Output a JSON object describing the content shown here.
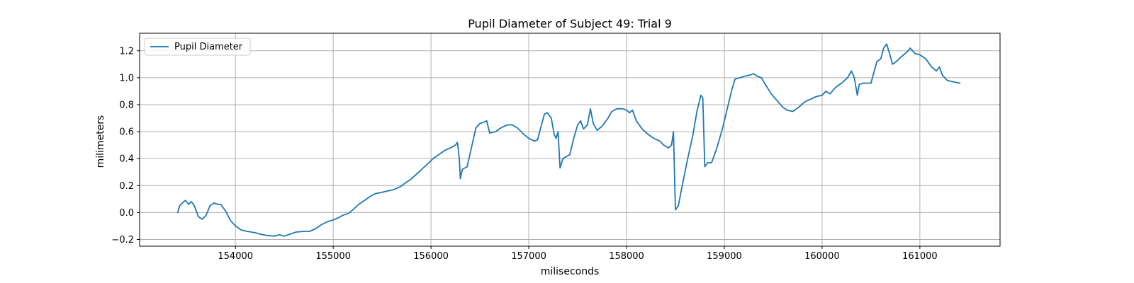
{
  "chart_data": {
    "type": "line",
    "title": "Pupil Diameter of Subject 49: Trial 9",
    "xlabel": "miliseconds",
    "ylabel": "milimeters",
    "xlim": [
      153020,
      161820
    ],
    "ylim": [
      -0.25,
      1.33
    ],
    "xticks": [
      154000,
      155000,
      156000,
      157000,
      158000,
      159000,
      160000,
      161000
    ],
    "yticks": [
      -0.2,
      0.0,
      0.2,
      0.4,
      0.6,
      0.8,
      1.0,
      1.2
    ],
    "xtick_labels": [
      "154000",
      "155000",
      "156000",
      "157000",
      "158000",
      "159000",
      "160000",
      "161000"
    ],
    "ytick_labels": [
      "−0.2",
      "0.0",
      "0.2",
      "0.4",
      "0.6",
      "0.8",
      "1.0",
      "1.2"
    ],
    "grid": true,
    "legend_position": "top-left",
    "series": [
      {
        "name": "Pupil Diameter",
        "color": "#1f77b4",
        "points": [
          [
            153410,
            0.0
          ],
          [
            153430,
            0.05
          ],
          [
            153470,
            0.08
          ],
          [
            153490,
            0.09
          ],
          [
            153520,
            0.06
          ],
          [
            153550,
            0.08
          ],
          [
            153580,
            0.05
          ],
          [
            153620,
            -0.03
          ],
          [
            153660,
            -0.05
          ],
          [
            153700,
            -0.02
          ],
          [
            153740,
            0.05
          ],
          [
            153780,
            0.07
          ],
          [
            153820,
            0.06
          ],
          [
            153850,
            0.06
          ],
          [
            153900,
            0.01
          ],
          [
            153950,
            -0.06
          ],
          [
            154000,
            -0.1
          ],
          [
            154060,
            -0.13
          ],
          [
            154120,
            -0.14
          ],
          [
            154200,
            -0.15
          ],
          [
            154250,
            -0.16
          ],
          [
            154320,
            -0.17
          ],
          [
            154400,
            -0.175
          ],
          [
            154450,
            -0.165
          ],
          [
            154500,
            -0.175
          ],
          [
            154560,
            -0.16
          ],
          [
            154620,
            -0.145
          ],
          [
            154700,
            -0.14
          ],
          [
            154760,
            -0.14
          ],
          [
            154820,
            -0.12
          ],
          [
            154880,
            -0.09
          ],
          [
            154950,
            -0.065
          ],
          [
            155000,
            -0.055
          ],
          [
            155050,
            -0.04
          ],
          [
            155100,
            -0.02
          ],
          [
            155160,
            -0.005
          ],
          [
            155200,
            0.02
          ],
          [
            155260,
            0.06
          ],
          [
            155320,
            0.09
          ],
          [
            155380,
            0.12
          ],
          [
            155430,
            0.14
          ],
          [
            155500,
            0.15
          ],
          [
            155560,
            0.16
          ],
          [
            155620,
            0.17
          ],
          [
            155680,
            0.19
          ],
          [
            155740,
            0.22
          ],
          [
            155800,
            0.25
          ],
          [
            155860,
            0.29
          ],
          [
            155920,
            0.33
          ],
          [
            155980,
            0.37
          ],
          [
            156020,
            0.4
          ],
          [
            156080,
            0.43
          ],
          [
            156140,
            0.46
          ],
          [
            156200,
            0.48
          ],
          [
            156250,
            0.5
          ],
          [
            156270,
            0.52
          ],
          [
            156290,
            0.4
          ],
          [
            156300,
            0.25
          ],
          [
            156320,
            0.32
          ],
          [
            156370,
            0.34
          ],
          [
            156420,
            0.5
          ],
          [
            156460,
            0.63
          ],
          [
            156500,
            0.66
          ],
          [
            156540,
            0.67
          ],
          [
            156570,
            0.68
          ],
          [
            156600,
            0.59
          ],
          [
            156660,
            0.6
          ],
          [
            156720,
            0.63
          ],
          [
            156780,
            0.65
          ],
          [
            156830,
            0.65
          ],
          [
            156880,
            0.63
          ],
          [
            156950,
            0.58
          ],
          [
            157000,
            0.55
          ],
          [
            157060,
            0.53
          ],
          [
            157090,
            0.54
          ],
          [
            157130,
            0.65
          ],
          [
            157160,
            0.73
          ],
          [
            157190,
            0.74
          ],
          [
            157230,
            0.7
          ],
          [
            157260,
            0.58
          ],
          [
            157280,
            0.55
          ],
          [
            157300,
            0.6
          ],
          [
            157320,
            0.33
          ],
          [
            157350,
            0.4
          ],
          [
            157420,
            0.43
          ],
          [
            157460,
            0.55
          ],
          [
            157500,
            0.65
          ],
          [
            157530,
            0.68
          ],
          [
            157560,
            0.62
          ],
          [
            157600,
            0.65
          ],
          [
            157630,
            0.77
          ],
          [
            157660,
            0.66
          ],
          [
            157700,
            0.61
          ],
          [
            157750,
            0.64
          ],
          [
            157810,
            0.7
          ],
          [
            157850,
            0.75
          ],
          [
            157900,
            0.77
          ],
          [
            157960,
            0.77
          ],
          [
            158000,
            0.76
          ],
          [
            158030,
            0.74
          ],
          [
            158060,
            0.76
          ],
          [
            158100,
            0.68
          ],
          [
            158160,
            0.62
          ],
          [
            158220,
            0.58
          ],
          [
            158280,
            0.55
          ],
          [
            158340,
            0.53
          ],
          [
            158380,
            0.5
          ],
          [
            158430,
            0.48
          ],
          [
            158460,
            0.5
          ],
          [
            158480,
            0.6
          ],
          [
            158500,
            0.02
          ],
          [
            158530,
            0.05
          ],
          [
            158570,
            0.2
          ],
          [
            158620,
            0.38
          ],
          [
            158680,
            0.58
          ],
          [
            158720,
            0.75
          ],
          [
            158760,
            0.87
          ],
          [
            158780,
            0.85
          ],
          [
            158800,
            0.34
          ],
          [
            158830,
            0.37
          ],
          [
            158870,
            0.37
          ],
          [
            158920,
            0.47
          ],
          [
            158980,
            0.62
          ],
          [
            159040,
            0.8
          ],
          [
            159080,
            0.92
          ],
          [
            159110,
            0.99
          ],
          [
            159160,
            1.0
          ],
          [
            159200,
            1.01
          ],
          [
            159260,
            1.02
          ],
          [
            159300,
            1.03
          ],
          [
            159340,
            1.01
          ],
          [
            159380,
            1.0
          ],
          [
            159420,
            0.95
          ],
          [
            159480,
            0.88
          ],
          [
            159540,
            0.83
          ],
          [
            159600,
            0.78
          ],
          [
            159640,
            0.76
          ],
          [
            159700,
            0.75
          ],
          [
            159760,
            0.78
          ],
          [
            159820,
            0.82
          ],
          [
            159880,
            0.84
          ],
          [
            159940,
            0.86
          ],
          [
            160000,
            0.87
          ],
          [
            160040,
            0.9
          ],
          [
            160080,
            0.88
          ],
          [
            160140,
            0.93
          ],
          [
            160200,
            0.96
          ],
          [
            160260,
            1.0
          ],
          [
            160300,
            1.05
          ],
          [
            160330,
            1.0
          ],
          [
            160360,
            0.87
          ],
          [
            160380,
            0.95
          ],
          [
            160420,
            0.96
          ],
          [
            160500,
            0.96
          ],
          [
            160560,
            1.12
          ],
          [
            160600,
            1.14
          ],
          [
            160630,
            1.22
          ],
          [
            160660,
            1.25
          ],
          [
            160690,
            1.18
          ],
          [
            160720,
            1.1
          ],
          [
            160760,
            1.12
          ],
          [
            160800,
            1.15
          ],
          [
            160850,
            1.18
          ],
          [
            160880,
            1.2
          ],
          [
            160900,
            1.22
          ],
          [
            160950,
            1.18
          ],
          [
            161000,
            1.17
          ],
          [
            161060,
            1.14
          ],
          [
            161120,
            1.08
          ],
          [
            161170,
            1.05
          ],
          [
            161200,
            1.08
          ],
          [
            161230,
            1.02
          ],
          [
            161280,
            0.98
          ],
          [
            161340,
            0.97
          ],
          [
            161410,
            0.96
          ]
        ]
      }
    ]
  }
}
